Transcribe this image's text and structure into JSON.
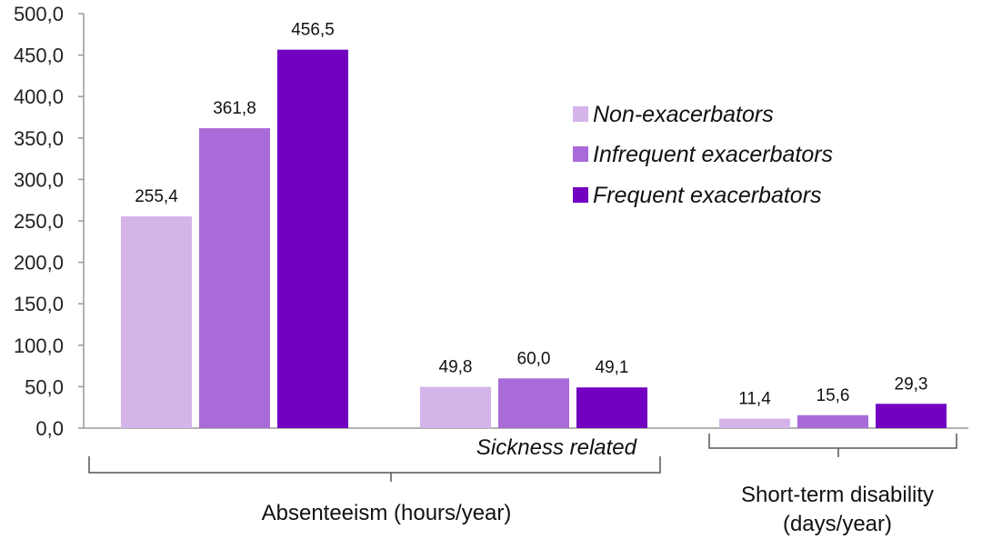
{
  "chart_data": {
    "type": "bar",
    "title": "",
    "ylim": [
      0,
      500
    ],
    "y_ticks": [
      "500,0",
      "450,0",
      "400,0",
      "350,0",
      "300,0",
      "250,0",
      "200,0",
      "150,0",
      "100,0",
      "50,0",
      "0,0"
    ],
    "y_tick_values": [
      500,
      450,
      400,
      350,
      300,
      250,
      200,
      150,
      100,
      50,
      0
    ],
    "grid": false,
    "legend_position": "right",
    "categories": [
      "",
      "Sickness related",
      ""
    ],
    "series": [
      {
        "name": "Non-exacerbators",
        "color": "#d5b4ea",
        "values": [
          255.4,
          49.8,
          11.4
        ],
        "labels": [
          "255,4",
          "49,8",
          "11,4"
        ]
      },
      {
        "name": "Infrequent exacerbators",
        "color": "#a96bd8",
        "values": [
          361.8,
          60.0,
          15.6
        ],
        "labels": [
          "361,8",
          "60,0",
          "15,6"
        ]
      },
      {
        "name": "Frequent exacerbators",
        "color": "#7200c0",
        "values": [
          456.5,
          49.1,
          29.3
        ],
        "labels": [
          "456,5",
          "49,1",
          "29,3"
        ]
      }
    ],
    "group_labels": [
      "Absenteeism (hours/year)",
      "Short-term disability",
      "(days/year)"
    ]
  }
}
